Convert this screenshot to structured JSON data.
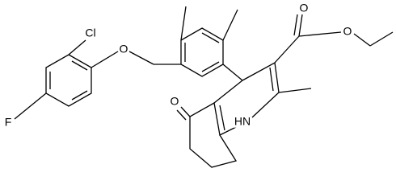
{
  "atoms": [
    "Cl",
    "O",
    "F",
    "O",
    "O",
    "O",
    "HN"
  ]
}
